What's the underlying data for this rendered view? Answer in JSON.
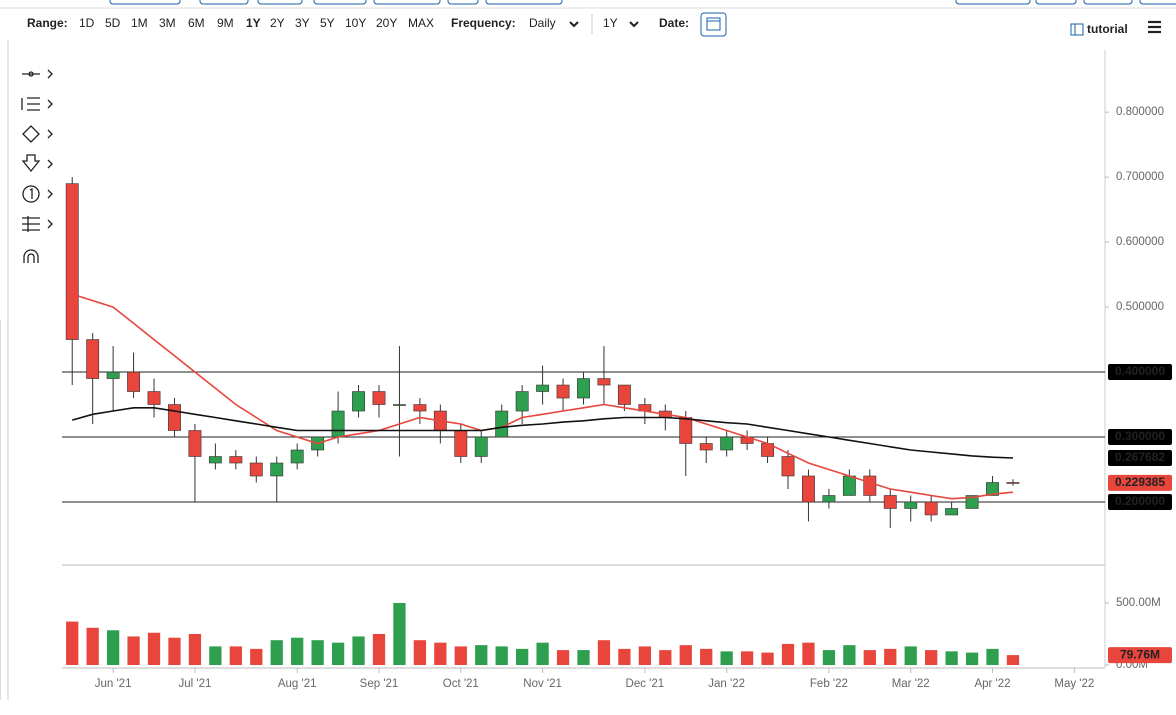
{
  "toolbar": {
    "range_label": "Range:",
    "ranges": [
      "1D",
      "5D",
      "1M",
      "3M",
      "6M",
      "9M",
      "1Y",
      "2Y",
      "3Y",
      "5Y",
      "10Y",
      "20Y",
      "MAX"
    ],
    "selected_range_index": 6,
    "frequency_label": "Frequency:",
    "frequency": "Daily",
    "period": "1Y",
    "date_label": "Date:",
    "tutorial": "tutorial"
  },
  "chart_data": {
    "type": "candlestick",
    "categories": [
      null,
      null,
      "Jun '21",
      null,
      null,
      null,
      "Jul '21",
      null,
      null,
      null,
      null,
      "Aug '21",
      null,
      null,
      null,
      "Sep '21",
      null,
      null,
      null,
      "Oct '21",
      null,
      null,
      null,
      "Nov '21",
      null,
      null,
      null,
      null,
      "Dec '21",
      null,
      null,
      null,
      "Jan '22",
      null,
      null,
      null,
      null,
      "Feb '22",
      null,
      null,
      null,
      "Mar '22",
      null,
      null,
      null,
      "Apr '22",
      null,
      null,
      null,
      "May '22",
      null
    ],
    "open": [
      0.69,
      0.45,
      0.39,
      0.4,
      0.37,
      0.35,
      0.31,
      0.26,
      0.27,
      0.26,
      0.24,
      0.26,
      0.28,
      0.3,
      0.34,
      0.37,
      0.35,
      0.35,
      0.34,
      0.31,
      0.27,
      0.3,
      0.34,
      0.37,
      0.38,
      0.36,
      0.39,
      0.38,
      0.35,
      0.34,
      0.33,
      0.29,
      0.28,
      0.3,
      0.29,
      0.27,
      0.24,
      0.2,
      0.21,
      0.24,
      0.21,
      0.19,
      0.2,
      0.18,
      0.19,
      0.21,
      0.23,
      null,
      null,
      null,
      null
    ],
    "high": [
      0.7,
      0.46,
      0.44,
      0.43,
      0.39,
      0.36,
      0.32,
      0.29,
      0.28,
      0.27,
      0.27,
      0.29,
      0.3,
      0.37,
      0.38,
      0.38,
      0.44,
      0.36,
      0.35,
      0.32,
      0.31,
      0.35,
      0.38,
      0.41,
      0.39,
      0.4,
      0.44,
      0.38,
      0.36,
      0.35,
      0.34,
      0.3,
      0.31,
      0.31,
      0.3,
      0.28,
      0.25,
      0.22,
      0.25,
      0.25,
      0.22,
      0.21,
      0.21,
      0.2,
      0.21,
      0.24,
      0.235,
      null,
      null,
      null,
      null
    ],
    "low": [
      0.38,
      0.32,
      0.34,
      0.36,
      0.33,
      0.3,
      0.2,
      0.25,
      0.25,
      0.23,
      0.2,
      0.25,
      0.27,
      0.29,
      0.33,
      0.33,
      0.27,
      0.32,
      0.29,
      0.26,
      0.26,
      0.3,
      0.32,
      0.35,
      0.34,
      0.35,
      0.35,
      0.34,
      0.32,
      0.31,
      0.24,
      0.26,
      0.27,
      0.28,
      0.26,
      0.22,
      0.17,
      0.19,
      0.21,
      0.2,
      0.16,
      0.17,
      0.17,
      0.18,
      0.19,
      0.21,
      0.225,
      null,
      null,
      null,
      null
    ],
    "close": [
      0.45,
      0.39,
      0.4,
      0.37,
      0.35,
      0.31,
      0.27,
      0.27,
      0.26,
      0.24,
      0.26,
      0.28,
      0.3,
      0.34,
      0.37,
      0.35,
      0.35,
      0.34,
      0.31,
      0.27,
      0.3,
      0.34,
      0.37,
      0.38,
      0.36,
      0.39,
      0.38,
      0.35,
      0.34,
      0.33,
      0.29,
      0.28,
      0.3,
      0.29,
      0.27,
      0.24,
      0.2,
      0.21,
      0.24,
      0.21,
      0.19,
      0.2,
      0.18,
      0.19,
      0.21,
      0.23,
      0.229,
      null,
      null,
      null,
      null
    ],
    "up_color": "#2e9e4f",
    "down_color": "#e8453c",
    "sma_fast": {
      "color": "#e8453c",
      "values": [
        0.52,
        0.51,
        0.5,
        0.475,
        0.45,
        0.425,
        0.4,
        0.375,
        0.35,
        0.33,
        0.31,
        0.3,
        0.29,
        0.3,
        0.305,
        0.31,
        0.32,
        0.33,
        0.325,
        0.32,
        0.31,
        0.315,
        0.33,
        0.335,
        0.34,
        0.345,
        0.35,
        0.345,
        0.34,
        0.335,
        0.33,
        0.32,
        0.31,
        0.3,
        0.29,
        0.275,
        0.26,
        0.25,
        0.24,
        0.23,
        0.22,
        0.215,
        0.21,
        0.205,
        0.207,
        0.212,
        0.215,
        null,
        null,
        null,
        null
      ]
    },
    "sma_slow": {
      "color": "#111111",
      "values": [
        0.326,
        0.335,
        0.34,
        0.345,
        0.345,
        0.34,
        0.335,
        0.33,
        0.325,
        0.32,
        0.315,
        0.31,
        0.31,
        0.31,
        0.31,
        0.31,
        0.31,
        0.31,
        0.31,
        0.31,
        0.31,
        0.315,
        0.318,
        0.32,
        0.323,
        0.325,
        0.328,
        0.33,
        0.33,
        0.33,
        0.328,
        0.325,
        0.322,
        0.32,
        0.315,
        0.31,
        0.305,
        0.3,
        0.295,
        0.29,
        0.285,
        0.28,
        0.277,
        0.274,
        0.271,
        0.269,
        0.267682,
        null,
        null,
        null,
        null
      ]
    },
    "ylim": [
      0.103,
      0.888
    ],
    "yticks": [
      {
        "value": 0.5,
        "label": "0.500000"
      },
      {
        "value": 0.6,
        "label": "0.600000"
      },
      {
        "value": 0.7,
        "label": "0.700000"
      },
      {
        "value": 0.8,
        "label": "0.800000"
      }
    ],
    "markers": [
      {
        "value": 0.4,
        "label": "0.400000",
        "color": "#000000",
        "line": true
      },
      {
        "value": 0.3,
        "label": "0.300000",
        "color": "#000000",
        "line": true
      },
      {
        "value": 0.2,
        "label": "0.200000",
        "color": "#000000",
        "line": true
      },
      {
        "value": 0.267682,
        "label": "0.267682",
        "color": "#000000",
        "line": false
      },
      {
        "value": 0.229385,
        "label": "0.229385",
        "color": "#e8453c",
        "line": false
      }
    ],
    "volume": {
      "values": [
        350,
        300,
        280,
        230,
        260,
        220,
        250,
        150,
        150,
        130,
        200,
        220,
        200,
        180,
        230,
        250,
        500,
        200,
        180,
        150,
        160,
        150,
        130,
        180,
        120,
        120,
        200,
        130,
        150,
        120,
        160,
        130,
        110,
        110,
        100,
        170,
        180,
        120,
        160,
        120,
        130,
        150,
        120,
        110,
        100,
        130,
        79.76,
        null,
        null,
        null,
        null
      ],
      "ylim": [
        0,
        790
      ],
      "yticks": [
        {
          "value": 0,
          "label": "0.00M"
        },
        {
          "value": 500,
          "label": "500.00M"
        }
      ],
      "last": {
        "value": 79.76,
        "label": "79.76M",
        "color": "#e8453c"
      }
    }
  }
}
